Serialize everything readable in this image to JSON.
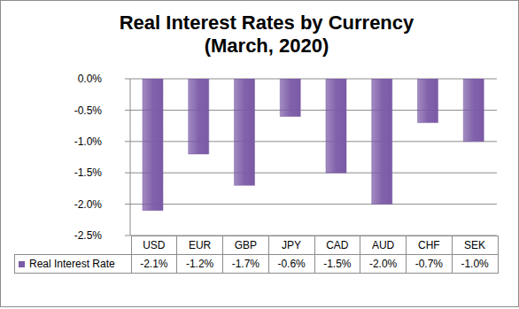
{
  "chart_data": {
    "type": "bar",
    "title": "Real Interest Rates by Currency\n(March, 2020)",
    "categories": [
      "USD",
      "EUR",
      "GBP",
      "JPY",
      "CAD",
      "AUD",
      "CHF",
      "SEK"
    ],
    "series": [
      {
        "name": "Real Interest Rate",
        "color": "#7b5aa6",
        "values": [
          -2.1,
          -1.2,
          -1.7,
          -0.6,
          -1.5,
          -2.0,
          -0.7,
          -1.0
        ],
        "value_labels": [
          "-2.1%",
          "-1.2%",
          "-1.7%",
          "-0.6%",
          "-1.5%",
          "-2.0%",
          "-0.7%",
          "-1.0%"
        ]
      }
    ],
    "ylim": [
      -2.5,
      0
    ],
    "yticks": [
      {
        "value": 0,
        "label": "0.0%"
      },
      {
        "value": -0.5,
        "label": "-0.5%"
      },
      {
        "value": -1,
        "label": "-1.0%"
      },
      {
        "value": -1.5,
        "label": "-1.5%"
      },
      {
        "value": -2,
        "label": "-2.0%"
      },
      {
        "value": -2.5,
        "label": "-2.5%"
      }
    ],
    "grid": true,
    "data_labels": true
  }
}
